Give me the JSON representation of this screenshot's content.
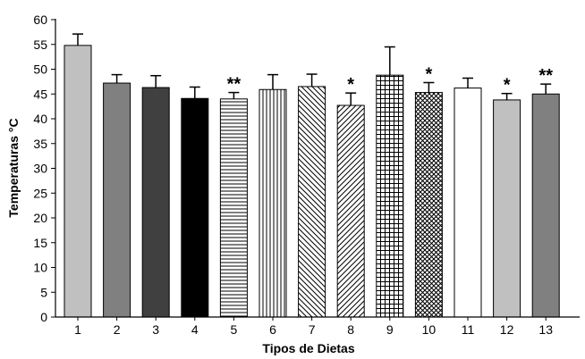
{
  "chart_data": {
    "type": "bar",
    "xlabel": "Tipos de Dietas",
    "ylabel": "Temperaturas °C",
    "ylim": [
      0,
      60
    ],
    "yticks": [
      0,
      5,
      10,
      15,
      20,
      25,
      30,
      35,
      40,
      45,
      50,
      55,
      60
    ],
    "grid": false,
    "categories": [
      "1",
      "2",
      "3",
      "4",
      "5",
      "6",
      "7",
      "8",
      "9",
      "10",
      "11",
      "12",
      "13"
    ],
    "values": [
      54.8,
      47.2,
      46.3,
      44.1,
      44.0,
      45.9,
      46.5,
      42.7,
      48.8,
      45.3,
      46.2,
      43.8,
      45.0
    ],
    "errors": [
      2.3,
      1.7,
      2.4,
      2.3,
      1.3,
      3.0,
      2.5,
      2.5,
      5.7,
      2.0,
      2.0,
      1.3,
      2.0
    ],
    "significance": [
      "",
      "",
      "",
      "",
      "**",
      "",
      "",
      "*",
      "",
      "*",
      "",
      "*",
      "**"
    ],
    "fills": [
      {
        "type": "solid",
        "color": "#c0c0c0"
      },
      {
        "type": "solid",
        "color": "#808080"
      },
      {
        "type": "solid",
        "color": "#404040"
      },
      {
        "type": "solid",
        "color": "#000000"
      },
      {
        "type": "horizontal-lines",
        "color": "#000000"
      },
      {
        "type": "vertical-lines",
        "color": "#000000"
      },
      {
        "type": "diagonal-back",
        "color": "#000000"
      },
      {
        "type": "diagonal-forward",
        "color": "#000000"
      },
      {
        "type": "grid",
        "color": "#000000"
      },
      {
        "type": "crosshatch",
        "color": "#000000"
      },
      {
        "type": "solid",
        "color": "#ffffff"
      },
      {
        "type": "solid",
        "color": "#c0c0c0"
      },
      {
        "type": "solid",
        "color": "#808080"
      }
    ]
  }
}
